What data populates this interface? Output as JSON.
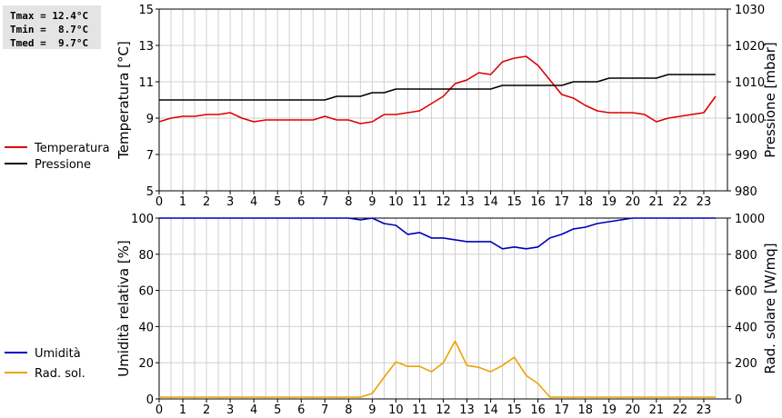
{
  "stats": {
    "tmax": "Tmax = 12.4°C",
    "tmin": "Tmin =  8.7°C",
    "tmed": "Tmed =  9.7°C"
  },
  "colors": {
    "temperature": "#dd0000",
    "pressure": "#000000",
    "humidity": "#0000bb",
    "solar": "#f0a000",
    "grid": "#d0d0d0"
  },
  "chart_data": [
    {
      "type": "line",
      "title": "",
      "xlabel": "",
      "ylabel": "Temperatura [°C]",
      "y2label": "Pressione [mbar]",
      "xlim": [
        0,
        24
      ],
      "ylim": [
        5,
        15
      ],
      "y2lim": [
        980,
        1030
      ],
      "xticks": [
        "0",
        "1",
        "2",
        "3",
        "4",
        "5",
        "6",
        "7",
        "8",
        "9",
        "10",
        "11",
        "12",
        "13",
        "14",
        "15",
        "16",
        "17",
        "18",
        "19",
        "20",
        "21",
        "22",
        "23"
      ],
      "yticks": [
        "5",
        "7",
        "9",
        "11",
        "13",
        "15"
      ],
      "y2ticks": [
        "980",
        "990",
        "1000",
        "1010",
        "1020",
        "1030"
      ],
      "legend": [
        "Temperatura",
        "Pressione"
      ],
      "series": [
        {
          "name": "Temperatura",
          "axis": "left",
          "x": [
            0,
            0.5,
            1,
            1.5,
            2,
            2.5,
            3,
            3.5,
            4,
            4.5,
            5,
            5.5,
            6,
            6.5,
            7,
            7.5,
            8,
            8.5,
            9,
            9.5,
            10,
            10.5,
            11,
            11.5,
            12,
            12.5,
            13,
            13.5,
            14,
            14.5,
            15,
            15.5,
            16,
            16.5,
            17,
            17.5,
            18,
            18.5,
            19,
            19.5,
            20,
            20.5,
            21,
            21.5,
            22,
            22.5,
            23,
            23.5
          ],
          "y": [
            8.8,
            9.0,
            9.1,
            9.1,
            9.2,
            9.2,
            9.3,
            9.0,
            8.8,
            8.9,
            8.9,
            8.9,
            8.9,
            8.9,
            9.1,
            8.9,
            8.9,
            8.7,
            8.8,
            9.2,
            9.2,
            9.3,
            9.4,
            9.8,
            10.2,
            10.9,
            11.1,
            11.5,
            11.4,
            12.1,
            12.3,
            12.4,
            11.9,
            11.1,
            10.3,
            10.1,
            9.7,
            9.4,
            9.3,
            9.3,
            9.3,
            9.2,
            8.8,
            9.0,
            9.1,
            9.2,
            9.3,
            10.2
          ]
        },
        {
          "name": "Pressione",
          "axis": "right",
          "x": [
            0,
            7,
            7.5,
            8.5,
            9,
            9.5,
            10,
            13.5,
            14,
            14.5,
            15,
            17,
            17.5,
            18.5,
            19,
            21,
            21.5,
            23.5
          ],
          "y": [
            1005,
            1005,
            1006,
            1006,
            1007,
            1007,
            1008,
            1008,
            1008,
            1009,
            1009,
            1009,
            1010,
            1010,
            1011,
            1011,
            1012,
            1012
          ]
        }
      ]
    },
    {
      "type": "line",
      "title": "",
      "xlabel": "",
      "ylabel": "Umidità relativa [%]",
      "y2label": "Rad. solare [W/mq]",
      "xlim": [
        0,
        24
      ],
      "ylim": [
        0,
        100
      ],
      "y2lim": [
        0,
        1000
      ],
      "xticks": [
        "0",
        "1",
        "2",
        "3",
        "4",
        "5",
        "6",
        "7",
        "8",
        "9",
        "10",
        "11",
        "12",
        "13",
        "14",
        "15",
        "16",
        "17",
        "18",
        "19",
        "20",
        "21",
        "22",
        "23"
      ],
      "yticks": [
        "0",
        "20",
        "40",
        "60",
        "80",
        "100"
      ],
      "y2ticks": [
        "0",
        "200",
        "400",
        "600",
        "800",
        "1000"
      ],
      "legend": [
        "Umidità",
        "Rad. sol."
      ],
      "series": [
        {
          "name": "Umidità",
          "axis": "left",
          "x": [
            0,
            8,
            8.5,
            9,
            9.5,
            10,
            10.5,
            11,
            11.5,
            12,
            12.5,
            13,
            13.5,
            14,
            14.5,
            15,
            15.5,
            16,
            16.5,
            17,
            17.5,
            18,
            18.5,
            19,
            19.5,
            20,
            23.5
          ],
          "y": [
            100,
            100,
            99,
            100,
            97,
            96,
            91,
            92,
            89,
            89,
            88,
            87,
            87,
            87,
            83,
            84,
            83,
            84,
            89,
            91,
            94,
            95,
            97,
            98,
            99,
            100,
            100
          ]
        },
        {
          "name": "Rad. sol.",
          "axis": "right",
          "x": [
            0,
            8.5,
            9,
            9.5,
            10,
            10.5,
            11,
            11.5,
            12,
            12.5,
            13,
            13.5,
            14,
            14.5,
            15,
            15.5,
            16,
            16.5,
            23.5
          ],
          "y": [
            10,
            10,
            30,
            120,
            205,
            180,
            180,
            150,
            200,
            320,
            185,
            175,
            150,
            185,
            230,
            130,
            85,
            10,
            10
          ]
        }
      ]
    }
  ]
}
